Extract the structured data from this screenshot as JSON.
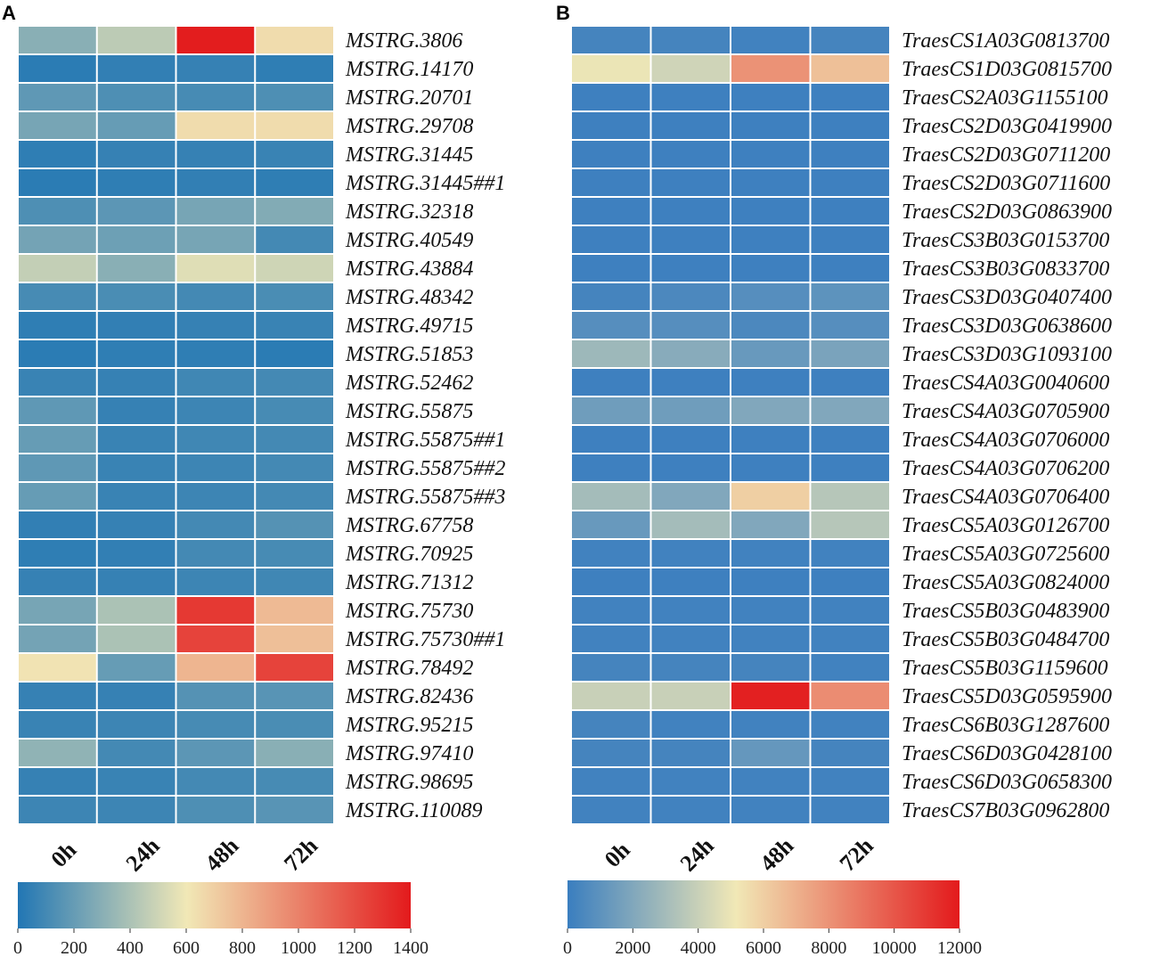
{
  "chart_data": [
    {
      "panel": "A",
      "type": "heatmap",
      "columns": [
        "0h",
        "24h",
        "48h",
        "72h"
      ],
      "rows": [
        "MSTRG.3806",
        "MSTRG.14170",
        "MSTRG.20701",
        "MSTRG.29708",
        "MSTRG.31445",
        "MSTRG.31445##1",
        "MSTRG.32318",
        "MSTRG.40549",
        "MSTRG.43884",
        "MSTRG.48342",
        "MSTRG.49715",
        "MSTRG.51853",
        "MSTRG.52462",
        "MSTRG.55875",
        "MSTRG.55875##1",
        "MSTRG.55875##2",
        "MSTRG.55875##3",
        "MSTRG.67758",
        "MSTRG.70925",
        "MSTRG.71312",
        "MSTRG.75730",
        "MSTRG.75730##1",
        "MSTRG.78492",
        "MSTRG.82436",
        "MSTRG.95215",
        "MSTRG.97410",
        "MSTRG.98695",
        "MSTRG.110089"
      ],
      "values": [
        [
          300,
          450,
          1390,
          650
        ],
        [
          30,
          50,
          60,
          40
        ],
        [
          180,
          130,
          110,
          130
        ],
        [
          250,
          200,
          650,
          650
        ],
        [
          40,
          60,
          60,
          70
        ],
        [
          30,
          40,
          50,
          40
        ],
        [
          130,
          170,
          250,
          280
        ],
        [
          240,
          220,
          250,
          100
        ],
        [
          470,
          300,
          550,
          500
        ],
        [
          110,
          120,
          100,
          120
        ],
        [
          40,
          50,
          60,
          70
        ],
        [
          30,
          40,
          40,
          30
        ],
        [
          70,
          60,
          90,
          100
        ],
        [
          180,
          60,
          80,
          110
        ],
        [
          200,
          70,
          90,
          100
        ],
        [
          180,
          70,
          80,
          100
        ],
        [
          200,
          70,
          80,
          100
        ],
        [
          50,
          60,
          100,
          150
        ],
        [
          40,
          50,
          100,
          110
        ],
        [
          60,
          60,
          80,
          90
        ],
        [
          250,
          400,
          1280,
          780
        ],
        [
          240,
          400,
          1240,
          760
        ],
        [
          620,
          200,
          800,
          1240
        ],
        [
          60,
          60,
          150,
          160
        ],
        [
          70,
          80,
          110,
          120
        ],
        [
          320,
          100,
          170,
          300
        ],
        [
          60,
          70,
          100,
          110
        ],
        [
          80,
          80,
          130,
          160
        ]
      ],
      "colorbar": {
        "min": 0,
        "max": 1400,
        "ticks": [
          0,
          200,
          400,
          600,
          800,
          1000,
          1200,
          1400
        ]
      }
    },
    {
      "panel": "B",
      "type": "heatmap",
      "columns": [
        "0h",
        "24h",
        "48h",
        "72h"
      ],
      "rows": [
        "TraesCS1A03G0813700",
        "TraesCS1D03G0815700",
        "TraesCS2A03G1155100",
        "TraesCS2D03G0419900",
        "TraesCS2D03G0711200",
        "TraesCS2D03G0711600",
        "TraesCS2D03G0863900",
        "TraesCS3B03G0153700",
        "TraesCS3B03G0833700",
        "TraesCS3D03G0407400",
        "TraesCS3D03G0638600",
        "TraesCS3D03G1093100",
        "TraesCS4A03G0040600",
        "TraesCS4A03G0705900",
        "TraesCS4A03G0706000",
        "TraesCS4A03G0706200",
        "TraesCS4A03G0706400",
        "TraesCS5A03G0126700",
        "TraesCS5A03G0725600",
        "TraesCS5A03G0824000",
        "TraesCS5B03G0483900",
        "TraesCS5B03G0484700",
        "TraesCS5B03G1159600",
        "TraesCS5D03G0595900",
        "TraesCS6B03G1287600",
        "TraesCS6D03G0428100",
        "TraesCS6D03G0658300",
        "TraesCS7B03G0962800"
      ],
      "values": [
        [
          300,
          300,
          200,
          300
        ],
        [
          5000,
          4200,
          8000,
          6500
        ],
        [
          100,
          100,
          100,
          100
        ],
        [
          100,
          100,
          100,
          100
        ],
        [
          100,
          100,
          100,
          100
        ],
        [
          100,
          100,
          100,
          100
        ],
        [
          100,
          100,
          100,
          100
        ],
        [
          100,
          100,
          100,
          100
        ],
        [
          100,
          100,
          100,
          100
        ],
        [
          300,
          500,
          800,
          1000
        ],
        [
          800,
          800,
          500,
          800
        ],
        [
          2800,
          2200,
          1300,
          1800
        ],
        [
          100,
          100,
          100,
          100
        ],
        [
          1500,
          1500,
          2000,
          2000
        ],
        [
          100,
          100,
          100,
          100
        ],
        [
          100,
          100,
          100,
          100
        ],
        [
          3000,
          2000,
          6000,
          3500
        ],
        [
          1300,
          3000,
          2000,
          3500
        ],
        [
          200,
          200,
          200,
          200
        ],
        [
          100,
          100,
          100,
          100
        ],
        [
          200,
          200,
          200,
          200
        ],
        [
          200,
          200,
          200,
          200
        ],
        [
          300,
          300,
          300,
          200
        ],
        [
          4000,
          4000,
          11800,
          8200
        ],
        [
          300,
          200,
          200,
          200
        ],
        [
          300,
          300,
          1200,
          300
        ],
        [
          200,
          200,
          200,
          200
        ],
        [
          200,
          200,
          200,
          200
        ]
      ],
      "colorbar": {
        "min": 0,
        "max": 12000,
        "ticks": [
          0,
          2000,
          4000,
          6000,
          8000,
          10000,
          12000
        ]
      }
    }
  ]
}
